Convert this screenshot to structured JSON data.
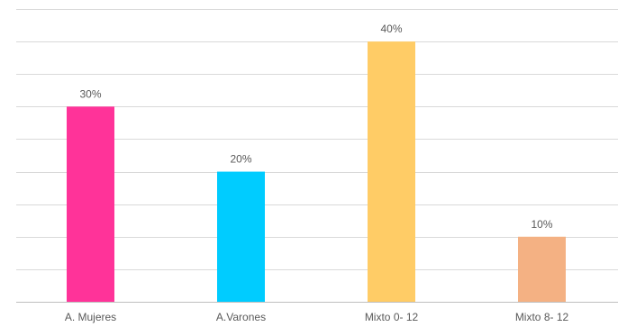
{
  "chart_data": {
    "type": "bar",
    "categories": [
      "A. Mujeres",
      "A.Varones",
      "Mixto 0- 12",
      "Mixto 8- 12"
    ],
    "values": [
      30,
      20,
      40,
      10
    ],
    "value_labels": [
      "30%",
      "20%",
      "40%",
      "10%"
    ],
    "colors": [
      "#ff3399",
      "#00ccff",
      "#ffcc66",
      "#f4b183"
    ],
    "ylim": [
      0,
      45
    ],
    "grid_step": 5,
    "grid": true,
    "title": "",
    "xlabel": "",
    "ylabel": ""
  }
}
